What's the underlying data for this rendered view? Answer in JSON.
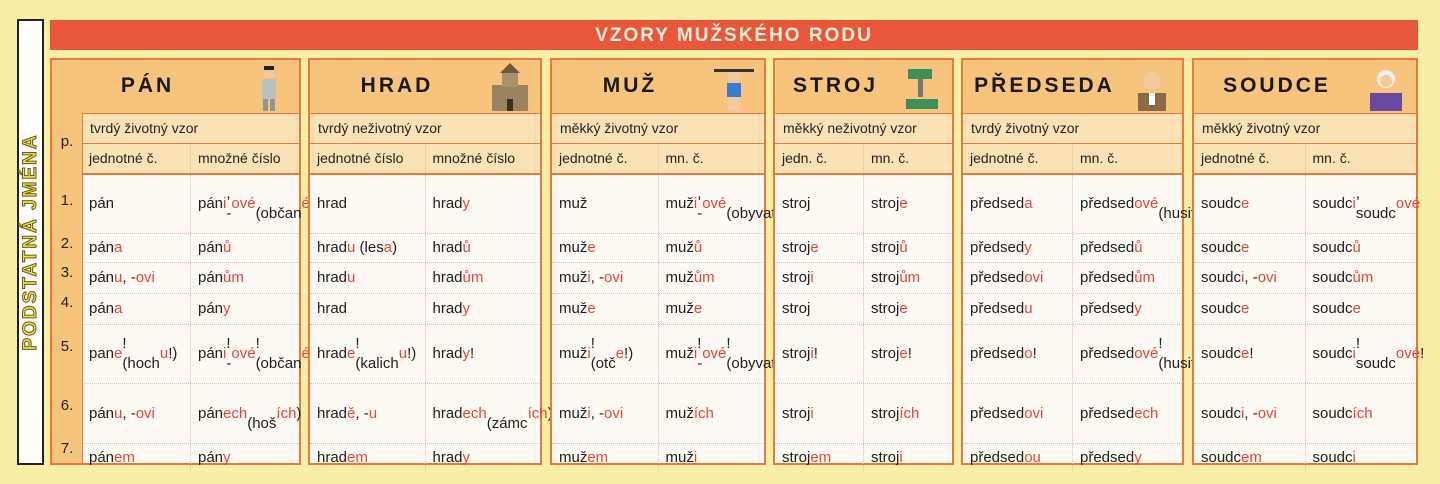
{
  "side_label": "PODSTATNÁ JMÉNA",
  "title": "VZORY MUŽSKÉHO RODU",
  "case_header": "p.",
  "cases": [
    "1.",
    "2.",
    "3.",
    "4.",
    "5.",
    "6.",
    "7."
  ],
  "colors": {
    "background": "#f8eea6",
    "title_bar": "#e9573a",
    "border": "#ea7a3c",
    "header": "#f6c47c",
    "ending": "#e8443a"
  },
  "patterns": [
    {
      "name": "PÁN",
      "illustration": "gentleman-icon",
      "type": "tvrdý životný vzor",
      "col_sg": "jednotné č.",
      "col_pl": "množné číslo",
      "rows": [
        [
          "pán",
          "pán[i], -[ové]\n(občan[é])"
        ],
        [
          "pán[a]",
          "pán[ů]"
        ],
        [
          "pán[u], -[ovi]",
          "pán[ům]"
        ],
        [
          "pán[a]",
          "pán[y]"
        ],
        [
          "pan[e]!\n(hoch[u]!)",
          "pán[i]! -[ové]!\n(občan[é]!)"
        ],
        [
          "pán[u], -[ovi]",
          "pán[ech]\n(hoš[ích])"
        ],
        [
          "pán[em]",
          "pán[y]"
        ]
      ]
    },
    {
      "name": "HRAD",
      "illustration": "castle-icon",
      "type": "tvrdý neživotný vzor",
      "col_sg": "jednotné číslo",
      "col_pl": "množné číslo",
      "rows": [
        [
          "hrad",
          "hrad[y]"
        ],
        [
          "hrad[u] (les[a])",
          "hrad[ů]"
        ],
        [
          "hrad[u]",
          "hrad[ům]"
        ],
        [
          "hrad",
          "hrad[y]"
        ],
        [
          "hrad[e]!\n(kalich[u]!)",
          "hrad[y]!"
        ],
        [
          "hrad[ě], -[u]",
          "hrad[ech]\n(zámc[ích])"
        ],
        [
          "hrad[em]",
          "hrad[y]"
        ]
      ]
    },
    {
      "name": "MUŽ",
      "illustration": "strongman-icon",
      "type": "měkký životný vzor",
      "col_sg": "jednotné č.",
      "col_pl": "mn. č.",
      "rows": [
        [
          "muž",
          "muž[i], -[ové]\n(obyvatel[é])"
        ],
        [
          "muž[e]",
          "muž[ů]"
        ],
        [
          "muž[i], -[ovi]",
          "muž[ům]"
        ],
        [
          "muž[e]",
          "muž[e]"
        ],
        [
          "muž[i]!\n(otč[e]!)",
          "muž[i]! -[ové]!\n(obyvatel[é]!)"
        ],
        [
          "muž[i], -[ovi]",
          "muž[ích]"
        ],
        [
          "muž[em]",
          "muž[i]"
        ]
      ]
    },
    {
      "name": "STROJ",
      "illustration": "machine-icon",
      "type": "měkký neživotný vzor",
      "col_sg": "jedn. č.",
      "col_pl": "mn. č.",
      "rows": [
        [
          "stroj",
          "stroj[e]"
        ],
        [
          "stroj[e]",
          "stroj[ů]"
        ],
        [
          "stroj[i]",
          "stroj[ům]"
        ],
        [
          "stroj",
          "stroj[e]"
        ],
        [
          "stroj[i]!",
          "stroj[e]!"
        ],
        [
          "stroj[i]",
          "stroj[ích]"
        ],
        [
          "stroj[em]",
          "stroj[i]"
        ]
      ]
    },
    {
      "name": "PŘEDSEDA",
      "illustration": "chairman-icon",
      "type": "tvrdý životný vzor",
      "col_sg": "jednotné č.",
      "col_pl": "mn. č.",
      "rows": [
        [
          "předsed[a]",
          "předsed[ové]\n(husit[é])"
        ],
        [
          "předsed[y]",
          "předsed[ů]"
        ],
        [
          "předsed[ovi]",
          "předsed[ům]"
        ],
        [
          "předsed[u]",
          "předsed[y]"
        ],
        [
          "předsed[o]!",
          "předsed[ové]!\n(husit[é]!)"
        ],
        [
          "předsed[ovi]",
          "předsed[ech]"
        ],
        [
          "předsed[ou]",
          "předsed[y]"
        ]
      ]
    },
    {
      "name": "SOUDCE",
      "illustration": "judge-icon",
      "type": "měkký životný vzor",
      "col_sg": "jednotné č.",
      "col_pl": "mn. č.",
      "rows": [
        [
          "soudc[e]",
          "soudc[i],\nsoudc[ové]"
        ],
        [
          "soudc[e]",
          "soudc[ů]"
        ],
        [
          "soudc[i], -[ovi]",
          "soudc[ům]"
        ],
        [
          "soudc[e]",
          "soudc[e]"
        ],
        [
          "soudc[e]!",
          "soudc[i]!\nsoudc[ové]!"
        ],
        [
          "soudc[i], -[ovi]",
          "soudc[ích]"
        ],
        [
          "soudc[em]",
          "soudc[i]"
        ]
      ]
    }
  ]
}
